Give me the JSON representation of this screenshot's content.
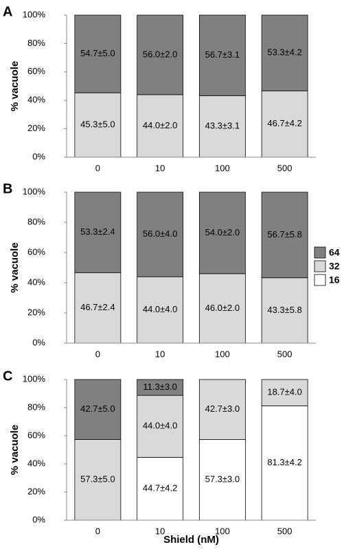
{
  "chart_data": [
    {
      "type": "bar",
      "label": "A",
      "ylabel": "% vacuole",
      "stacked": true,
      "categories": [
        "0",
        "10",
        "100",
        "500"
      ],
      "ylim": [
        0,
        100
      ],
      "yticks": [
        {
          "value": 0,
          "label": "0%"
        },
        {
          "value": 20,
          "label": "20%"
        },
        {
          "value": 40,
          "label": "40%"
        },
        {
          "value": 60,
          "label": "60%"
        },
        {
          "value": 80,
          "label": "80%"
        },
        {
          "value": 100,
          "label": "100%"
        }
      ],
      "series": [
        {
          "name": "16",
          "color": "#ffffff",
          "values": [
            null,
            null,
            null,
            null
          ],
          "value_labels": [
            null,
            null,
            null,
            null
          ]
        },
        {
          "name": "32",
          "color": "#d9d9d9",
          "values": [
            45.3,
            44.0,
            43.3,
            46.7
          ],
          "value_labels": [
            "45.3±5.0",
            "44.0±2.0",
            "43.3±3.1",
            "46.7±4.2"
          ]
        },
        {
          "name": "64",
          "color": "#808080",
          "values": [
            54.7,
            56.0,
            56.7,
            53.3
          ],
          "value_labels": [
            "54.7±5.0",
            "56.0±2.0",
            "56.7±3.1",
            "53.3±4.2"
          ]
        }
      ]
    },
    {
      "type": "bar",
      "label": "B",
      "ylabel": "% vacuole",
      "stacked": true,
      "legend": "right",
      "categories": [
        "0",
        "10",
        "100",
        "500"
      ],
      "ylim": [
        0,
        100
      ],
      "yticks": [
        {
          "value": 0,
          "label": "0%"
        },
        {
          "value": 20,
          "label": "20%"
        },
        {
          "value": 40,
          "label": "40%"
        },
        {
          "value": 60,
          "label": "60%"
        },
        {
          "value": 80,
          "label": "80%"
        },
        {
          "value": 100,
          "label": "100%"
        }
      ],
      "series": [
        {
          "name": "16",
          "color": "#ffffff",
          "values": [
            null,
            null,
            null,
            null
          ],
          "value_labels": [
            null,
            null,
            null,
            null
          ]
        },
        {
          "name": "32",
          "color": "#d9d9d9",
          "values": [
            46.7,
            44.0,
            46.0,
            43.3
          ],
          "value_labels": [
            "46.7±2.4",
            "44.0±4.0",
            "46.0±2.0",
            "43.3±5.8"
          ]
        },
        {
          "name": "64",
          "color": "#808080",
          "values": [
            53.3,
            56.0,
            54.0,
            56.7
          ],
          "value_labels": [
            "53.3±2.4",
            "56.0±4.0",
            "54.0±2.0",
            "56.7±5.8"
          ]
        }
      ]
    },
    {
      "type": "bar",
      "label": "C",
      "ylabel": "% vacuole",
      "xlabel": "Shield (nM)",
      "stacked": true,
      "categories": [
        "0",
        "10",
        "100",
        "500"
      ],
      "ylim": [
        0,
        100
      ],
      "yticks": [
        {
          "value": 0,
          "label": "0%"
        },
        {
          "value": 20,
          "label": "20%"
        },
        {
          "value": 40,
          "label": "40%"
        },
        {
          "value": 60,
          "label": "60%"
        },
        {
          "value": 80,
          "label": "80%"
        },
        {
          "value": 100,
          "label": "100%"
        }
      ],
      "series": [
        {
          "name": "16",
          "color": "#ffffff",
          "values": [
            null,
            44.7,
            57.3,
            81.3
          ],
          "value_labels": [
            null,
            "44.7±4.2",
            "57.3±3.0",
            "81.3±4.2"
          ]
        },
        {
          "name": "32",
          "color": "#d9d9d9",
          "values": [
            57.3,
            44.0,
            42.7,
            18.7
          ],
          "value_labels": [
            "57.3±5.0",
            "44.0±4.0",
            "42.7±3.0",
            "18.7±4.0"
          ]
        },
        {
          "name": "64",
          "color": "#808080",
          "values": [
            42.7,
            11.3,
            null,
            null
          ],
          "value_labels": [
            "42.7±5.0",
            "11.3±3.0",
            null,
            null
          ]
        }
      ]
    }
  ]
}
